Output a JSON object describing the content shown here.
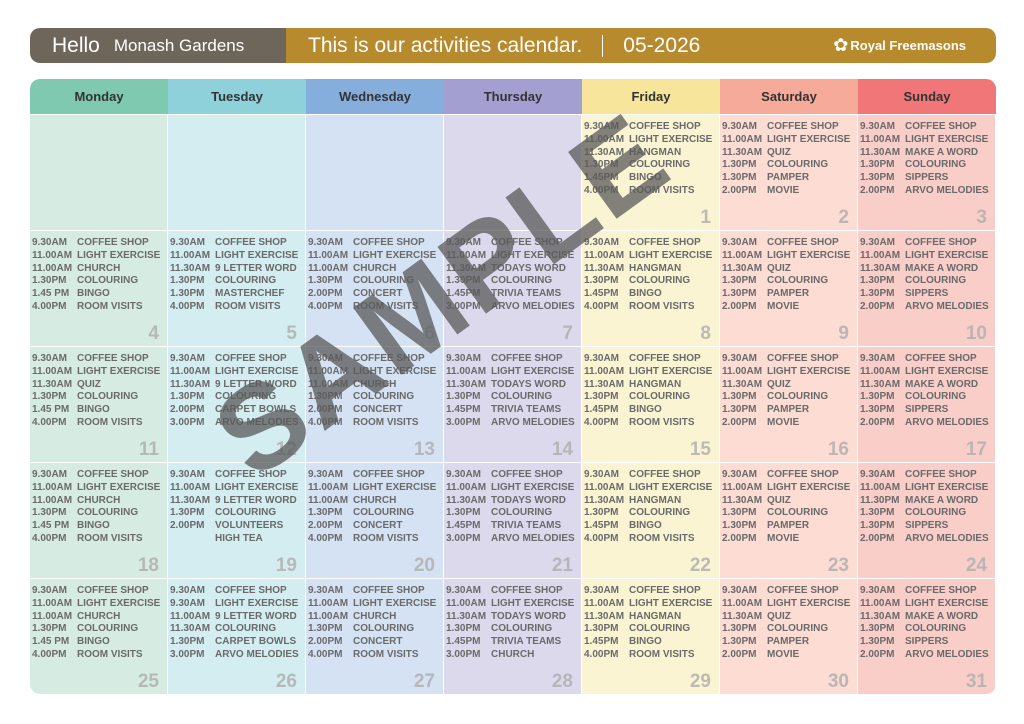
{
  "header": {
    "greeting": "Hello",
    "location": "Monash Gardens",
    "calendar_text": "This is our activities calendar.",
    "date": "05-2026",
    "brand": "Royal Freemasons"
  },
  "watermark": "SAMPLE",
  "days": [
    {
      "label": "Monday",
      "head_color": "#7fc9b1",
      "cell_color": "#d6ece2"
    },
    {
      "label": "Tuesday",
      "head_color": "#8fd1da",
      "cell_color": "#d3edf1"
    },
    {
      "label": "Wednesday",
      "head_color": "#86aedd",
      "cell_color": "#d4e2f3"
    },
    {
      "label": "Thursday",
      "head_color": "#a39fd0",
      "cell_color": "#dcd9ed"
    },
    {
      "label": "Friday",
      "head_color": "#f6e59a",
      "cell_color": "#fbf4d3"
    },
    {
      "label": "Saturday",
      "head_color": "#f6aa9a",
      "cell_color": "#fcdcd3"
    },
    {
      "label": "Sunday",
      "head_color": "#f07678",
      "cell_color": "#f9cdc8"
    }
  ],
  "weeks": [
    [
      {
        "day": "",
        "activities": []
      },
      {
        "day": "",
        "activities": []
      },
      {
        "day": "",
        "activities": []
      },
      {
        "day": "",
        "activities": []
      },
      {
        "day": "1",
        "activities": [
          {
            "time": "9.30AM",
            "name": "COFFEE SHOP"
          },
          {
            "time": "11.00AM",
            "name": "LIGHT EXERCISE"
          },
          {
            "time": "11.30AM",
            "name": "HANGMAN"
          },
          {
            "time": "1.30PM",
            "name": "COLOURING"
          },
          {
            "time": "1.45PM",
            "name": "BINGO"
          },
          {
            "time": "4.00PM",
            "name": "ROOM VISITS"
          }
        ]
      },
      {
        "day": "2",
        "activities": [
          {
            "time": "9.30AM",
            "name": "COFFEE SHOP"
          },
          {
            "time": "11.00AM",
            "name": "LIGHT EXERCISE"
          },
          {
            "time": "11.30AM",
            "name": "QUIZ"
          },
          {
            "time": "1.30PM",
            "name": "COLOURING"
          },
          {
            "time": "1.30PM",
            "name": "PAMPER"
          },
          {
            "time": "2.00PM",
            "name": "MOVIE"
          }
        ]
      },
      {
        "day": "3",
        "activities": [
          {
            "time": "9.30AM",
            "name": "COFFEE SHOP"
          },
          {
            "time": "11.00AM",
            "name": "LIGHT EXERCISE"
          },
          {
            "time": "11.30AM",
            "name": "MAKE A WORD"
          },
          {
            "time": "1.30PM",
            "name": "COLOURING"
          },
          {
            "time": "1.30PM",
            "name": "SIPPERS"
          },
          {
            "time": "2.00PM",
            "name": "ARVO MELODIES"
          }
        ]
      }
    ],
    [
      {
        "day": "4",
        "activities": [
          {
            "time": "9.30AM",
            "name": "COFFEE SHOP"
          },
          {
            "time": "11.00AM",
            "name": "LIGHT EXERCISE"
          },
          {
            "time": "11.00AM",
            "name": "CHURCH"
          },
          {
            "time": "1.30PM",
            "name": "COLOURING"
          },
          {
            "time": "1.45 PM",
            "name": "BINGO"
          },
          {
            "time": "4.00PM",
            "name": "ROOM VISITS"
          }
        ]
      },
      {
        "day": "5",
        "activities": [
          {
            "time": "9.30AM",
            "name": "COFFEE SHOP"
          },
          {
            "time": "11.00AM",
            "name": "LIGHT EXERCISE"
          },
          {
            "time": "11.30AM",
            "name": "9 LETTER WORD"
          },
          {
            "time": "1.30PM",
            "name": "COLOURING"
          },
          {
            "time": "1.30PM",
            "name": "MASTERCHEF"
          },
          {
            "time": "4.00PM",
            "name": "ROOM VISITS"
          }
        ]
      },
      {
        "day": "6",
        "activities": [
          {
            "time": "9.30AM",
            "name": "COFFEE SHOP"
          },
          {
            "time": "11.00AM",
            "name": "LIGHT EXERCISE"
          },
          {
            "time": "11.00AM",
            "name": "CHURCH"
          },
          {
            "time": "1.30PM",
            "name": "COLOURING"
          },
          {
            "time": "2.00PM",
            "name": "CONCERT"
          },
          {
            "time": "4.00PM",
            "name": "ROOM VISITS"
          }
        ]
      },
      {
        "day": "7",
        "activities": [
          {
            "time": "9.30AM",
            "name": "COFFEE SHOP"
          },
          {
            "time": "11.00AM",
            "name": "LIGHT EXERCISE"
          },
          {
            "time": "11.30AM",
            "name": "TODAYS WORD"
          },
          {
            "time": "1.30PM",
            "name": "COLOURING"
          },
          {
            "time": "1.45PM",
            "name": "TRIVIA TEAMS"
          },
          {
            "time": "3.00PM",
            "name": "ARVO MELODIES"
          }
        ]
      },
      {
        "day": "8",
        "activities": [
          {
            "time": "9.30AM",
            "name": "COFFEE SHOP"
          },
          {
            "time": "11.00AM",
            "name": "LIGHT EXERCISE"
          },
          {
            "time": "11.30AM",
            "name": "HANGMAN"
          },
          {
            "time": "1.30PM",
            "name": "COLOURING"
          },
          {
            "time": "1.45PM",
            "name": "BINGO"
          },
          {
            "time": "4.00PM",
            "name": "ROOM VISITS"
          }
        ]
      },
      {
        "day": "9",
        "activities": [
          {
            "time": "9.30AM",
            "name": "COFFEE SHOP"
          },
          {
            "time": "11.00AM",
            "name": "LIGHT EXERCISE"
          },
          {
            "time": "11.30AM",
            "name": "QUIZ"
          },
          {
            "time": "1.30PM",
            "name": "COLOURING"
          },
          {
            "time": "1.30PM",
            "name": "PAMPER"
          },
          {
            "time": "2.00PM",
            "name": "MOVIE"
          }
        ]
      },
      {
        "day": "10",
        "activities": [
          {
            "time": "9.30AM",
            "name": "COFFEE SHOP"
          },
          {
            "time": "11.00AM",
            "name": "LIGHT EXERCISE"
          },
          {
            "time": "11.30AM",
            "name": "MAKE A WORD"
          },
          {
            "time": "1.30PM",
            "name": "COLOURING"
          },
          {
            "time": "1.30PM",
            "name": "SIPPERS"
          },
          {
            "time": "2.00PM",
            "name": "ARVO MELODIES"
          }
        ]
      }
    ],
    [
      {
        "day": "11",
        "activities": [
          {
            "time": "9.30AM",
            "name": "COFFEE SHOP"
          },
          {
            "time": "11.00AM",
            "name": "LIGHT EXERCISE"
          },
          {
            "time": "11.30AM",
            "name": "QUIZ"
          },
          {
            "time": "1.30PM",
            "name": "COLOURING"
          },
          {
            "time": "1.45 PM",
            "name": "BINGO"
          },
          {
            "time": "4.00PM",
            "name": "ROOM VISITS"
          }
        ]
      },
      {
        "day": "12",
        "activities": [
          {
            "time": "9.30AM",
            "name": "COFFEE SHOP"
          },
          {
            "time": "11.00AM",
            "name": "LIGHT EXERCISE"
          },
          {
            "time": "11.30AM",
            "name": "9 LETTER WORD"
          },
          {
            "time": "1.30PM",
            "name": "COLOURING"
          },
          {
            "time": "2.00PM",
            "name": "CARPET BOWLS"
          },
          {
            "time": "3.00PM",
            "name": "ARVO MELODIES"
          }
        ]
      },
      {
        "day": "13",
        "activities": [
          {
            "time": "9.30AM",
            "name": "COFFEE SHOP"
          },
          {
            "time": "11.00AM",
            "name": "LIGHT EXERCISE"
          },
          {
            "time": "11.00AM",
            "name": "CHURCH"
          },
          {
            "time": "1.30PM",
            "name": "COLOURING"
          },
          {
            "time": "2.00PM",
            "name": "CONCERT"
          },
          {
            "time": "4.00PM",
            "name": "ROOM VISITS"
          }
        ]
      },
      {
        "day": "14",
        "activities": [
          {
            "time": "9.30AM",
            "name": "COFFEE SHOP"
          },
          {
            "time": "11.00AM",
            "name": "LIGHT EXERCISE"
          },
          {
            "time": "11.30AM",
            "name": "TODAYS WORD"
          },
          {
            "time": "1.30PM",
            "name": "COLOURING"
          },
          {
            "time": "1.45PM",
            "name": "TRIVIA TEAMS"
          },
          {
            "time": "3.00PM",
            "name": "ARVO MELODIES"
          }
        ]
      },
      {
        "day": "15",
        "activities": [
          {
            "time": "9.30AM",
            "name": "COFFEE SHOP"
          },
          {
            "time": "11.00AM",
            "name": "LIGHT EXERCISE"
          },
          {
            "time": "11.30AM",
            "name": "HANGMAN"
          },
          {
            "time": "1.30PM",
            "name": "COLOURING"
          },
          {
            "time": "1.45PM",
            "name": "BINGO"
          },
          {
            "time": "4.00PM",
            "name": "ROOM VISITS"
          }
        ]
      },
      {
        "day": "16",
        "activities": [
          {
            "time": "9.30AM",
            "name": "COFFEE SHOP"
          },
          {
            "time": "11.00AM",
            "name": "LIGHT EXERCISE"
          },
          {
            "time": "11.30AM",
            "name": "QUIZ"
          },
          {
            "time": "1.30PM",
            "name": "COLOURING"
          },
          {
            "time": "1.30PM",
            "name": "PAMPER"
          },
          {
            "time": "2.00PM",
            "name": "MOVIE"
          }
        ]
      },
      {
        "day": "17",
        "activities": [
          {
            "time": "9.30AM",
            "name": "COFFEE SHOP"
          },
          {
            "time": "11.00AM",
            "name": "LIGHT EXERCISE"
          },
          {
            "time": "11.30AM",
            "name": "MAKE A WORD"
          },
          {
            "time": "1.30PM",
            "name": "COLOURING"
          },
          {
            "time": "1.30PM",
            "name": "SIPPERS"
          },
          {
            "time": "2.00PM",
            "name": "ARVO MELODIES"
          }
        ]
      }
    ],
    [
      {
        "day": "18",
        "activities": [
          {
            "time": "9.30AM",
            "name": "COFFEE SHOP"
          },
          {
            "time": "11.00AM",
            "name": "LIGHT EXERCISE"
          },
          {
            "time": "11.00AM",
            "name": "CHURCH"
          },
          {
            "time": "1.30PM",
            "name": "COLOURING"
          },
          {
            "time": "1.45 PM",
            "name": "BINGO"
          },
          {
            "time": "4.00PM",
            "name": "ROOM VISITS"
          }
        ]
      },
      {
        "day": "19",
        "activities": [
          {
            "time": "9.30AM",
            "name": "COFFEE SHOP"
          },
          {
            "time": "11.00AM",
            "name": "LIGHT EXERCISE"
          },
          {
            "time": "11.30AM",
            "name": "9 LETTER WORD"
          },
          {
            "time": "1.30PM",
            "name": "COLOURING"
          },
          {
            "time": "2.00PM",
            "name": "VOLUNTEERS"
          },
          {
            "time": "",
            "name": "HIGH TEA"
          }
        ]
      },
      {
        "day": "20",
        "activities": [
          {
            "time": "9.30AM",
            "name": "COFFEE SHOP"
          },
          {
            "time": "11.00AM",
            "name": "LIGHT EXERCISE"
          },
          {
            "time": "11.00AM",
            "name": "CHURCH"
          },
          {
            "time": "1.30PM",
            "name": "COLOURING"
          },
          {
            "time": "2.00PM",
            "name": "CONCERT"
          },
          {
            "time": "4.00PM",
            "name": "ROOM VISITS"
          }
        ]
      },
      {
        "day": "21",
        "activities": [
          {
            "time": "9.30AM",
            "name": "COFFEE SHOP"
          },
          {
            "time": "11.00AM",
            "name": "LIGHT EXERCISE"
          },
          {
            "time": "11.30AM",
            "name": "TODAYS WORD"
          },
          {
            "time": "1.30PM",
            "name": "COLOURING"
          },
          {
            "time": "1.45PM",
            "name": "TRIVIA TEAMS"
          },
          {
            "time": "3.00PM",
            "name": "ARVO MELODIES"
          }
        ]
      },
      {
        "day": "22",
        "activities": [
          {
            "time": "9.30AM",
            "name": "COFFEE SHOP"
          },
          {
            "time": "11.00AM",
            "name": "LIGHT EXERCISE"
          },
          {
            "time": "11.30AM",
            "name": "HANGMAN"
          },
          {
            "time": "1.30PM",
            "name": "COLOURING"
          },
          {
            "time": "1.45PM",
            "name": "BINGO"
          },
          {
            "time": "4.00PM",
            "name": "ROOM VISITS"
          }
        ]
      },
      {
        "day": "23",
        "activities": [
          {
            "time": "9.30AM",
            "name": "COFFEE SHOP"
          },
          {
            "time": "11.00AM",
            "name": "LIGHT EXERCISE"
          },
          {
            "time": "11.30AM",
            "name": "QUIZ"
          },
          {
            "time": "1.30PM",
            "name": "COLOURING"
          },
          {
            "time": "1.30PM",
            "name": "PAMPER"
          },
          {
            "time": "2.00PM",
            "name": "MOVIE"
          }
        ]
      },
      {
        "day": "24",
        "activities": [
          {
            "time": "9.30AM",
            "name": "COFFEE SHOP"
          },
          {
            "time": "11.00AM",
            "name": "LIGHT EXERCISE"
          },
          {
            "time": "11.30PM",
            "name": "MAKE A WORD"
          },
          {
            "time": "1.30PM",
            "name": "COLOURING"
          },
          {
            "time": "1.30PM",
            "name": "SIPPERS"
          },
          {
            "time": "2.00PM",
            "name": "ARVO MELODIES"
          }
        ]
      }
    ],
    [
      {
        "day": "25",
        "activities": [
          {
            "time": "9.30AM",
            "name": "COFFEE SHOP"
          },
          {
            "time": "11.00AM",
            "name": "LIGHT EXERCISE"
          },
          {
            "time": "11.00AM",
            "name": "CHURCH"
          },
          {
            "time": "1.30PM",
            "name": "COLOURING"
          },
          {
            "time": "1.45 PM",
            "name": "BINGO"
          },
          {
            "time": "4.00PM",
            "name": "ROOM VISITS"
          }
        ]
      },
      {
        "day": "26",
        "activities": [
          {
            "time": "9.30AM",
            "name": "COFFEE SHOP"
          },
          {
            "time": "9.30AM",
            "name": "LIGHT EXERCISE"
          },
          {
            "time": "11.00AM",
            "name": "9 LETTER WORD"
          },
          {
            "time": "11.30AM",
            "name": "COLOURING"
          },
          {
            "time": "1.30PM",
            "name": "CARPET BOWLS"
          },
          {
            "time": "3.00PM",
            "name": "ARVO MELODIES"
          }
        ]
      },
      {
        "day": "27",
        "activities": [
          {
            "time": "9.30AM",
            "name": "COFFEE SHOP"
          },
          {
            "time": "11.00AM",
            "name": "LIGHT EXERCISE"
          },
          {
            "time": "11.00AM",
            "name": "CHURCH"
          },
          {
            "time": "1.30PM",
            "name": "COLOURING"
          },
          {
            "time": "2.00PM",
            "name": "CONCERT"
          },
          {
            "time": "4.00PM",
            "name": "ROOM VISITS"
          }
        ]
      },
      {
        "day": "28",
        "activities": [
          {
            "time": "9.30AM",
            "name": "COFFEE SHOP"
          },
          {
            "time": "11.00AM",
            "name": "LIGHT EXERCISE"
          },
          {
            "time": "11.30AM",
            "name": "TODAYS WORD"
          },
          {
            "time": "1.30PM",
            "name": "COLOURING"
          },
          {
            "time": "1.45PM",
            "name": "TRIVIA TEAMS"
          },
          {
            "time": "3.00PM",
            "name": "CHURCH"
          }
        ]
      },
      {
        "day": "29",
        "activities": [
          {
            "time": "9.30AM",
            "name": "COFFEE SHOP"
          },
          {
            "time": "11.00AM",
            "name": "LIGHT EXERCISE"
          },
          {
            "time": "11.30AM",
            "name": "HANGMAN"
          },
          {
            "time": "1.30PM",
            "name": "COLOURING"
          },
          {
            "time": "1.45PM",
            "name": "BINGO"
          },
          {
            "time": "4.00PM",
            "name": "ROOM VISITS"
          }
        ]
      },
      {
        "day": "30",
        "activities": [
          {
            "time": "9.30AM",
            "name": "COFFEE SHOP"
          },
          {
            "time": "11.00AM",
            "name": "LIGHT EXERCISE"
          },
          {
            "time": "11.30AM",
            "name": "QUIZ"
          },
          {
            "time": "1.30PM",
            "name": "COLOURING"
          },
          {
            "time": "1.30PM",
            "name": "PAMPER"
          },
          {
            "time": "2.00PM",
            "name": "MOVIE"
          }
        ]
      },
      {
        "day": "31",
        "activities": [
          {
            "time": "9.30AM",
            "name": "COFFEE SHOP"
          },
          {
            "time": "11.00AM",
            "name": "LIGHT EXERCISE"
          },
          {
            "time": "11.30AM",
            "name": "MAKE A WORD"
          },
          {
            "time": "1.30PM",
            "name": "COLOURING"
          },
          {
            "time": "1.30PM",
            "name": "SIPPERS"
          },
          {
            "time": "2.00PM",
            "name": "ARVO MELODIES"
          }
        ]
      }
    ]
  ]
}
